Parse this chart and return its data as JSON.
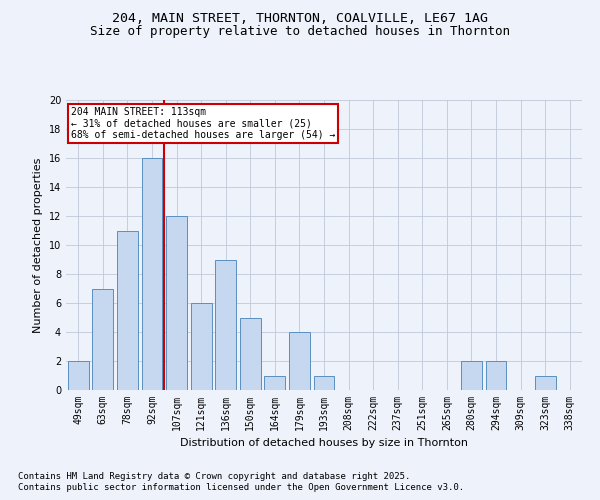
{
  "title1": "204, MAIN STREET, THORNTON, COALVILLE, LE67 1AG",
  "title2": "Size of property relative to detached houses in Thornton",
  "xlabel": "Distribution of detached houses by size in Thornton",
  "ylabel": "Number of detached properties",
  "categories": [
    "49sqm",
    "63sqm",
    "78sqm",
    "92sqm",
    "107sqm",
    "121sqm",
    "136sqm",
    "150sqm",
    "164sqm",
    "179sqm",
    "193sqm",
    "208sqm",
    "222sqm",
    "237sqm",
    "251sqm",
    "265sqm",
    "280sqm",
    "294sqm",
    "309sqm",
    "323sqm",
    "338sqm"
  ],
  "values": [
    2,
    7,
    11,
    16,
    12,
    6,
    9,
    5,
    1,
    4,
    1,
    0,
    0,
    0,
    0,
    0,
    2,
    2,
    0,
    1,
    0
  ],
  "bar_color": "#c5d8ef",
  "bar_edge_color": "#5a8fc0",
  "redline_x": 3.5,
  "annotation_text": "204 MAIN STREET: 113sqm\n← 31% of detached houses are smaller (25)\n68% of semi-detached houses are larger (54) →",
  "annotation_box_color": "#ffffff",
  "annotation_box_edge": "#cc0000",
  "redline_color": "#cc0000",
  "ylim": [
    0,
    20
  ],
  "yticks": [
    0,
    2,
    4,
    6,
    8,
    10,
    12,
    14,
    16,
    18,
    20
  ],
  "footer1": "Contains HM Land Registry data © Crown copyright and database right 2025.",
  "footer2": "Contains public sector information licensed under the Open Government Licence v3.0.",
  "bg_color": "#eef2fb",
  "plot_bg_color": "#eef2fb",
  "title_fontsize": 9.5,
  "axis_label_fontsize": 8,
  "tick_fontsize": 7,
  "footer_fontsize": 6.5
}
